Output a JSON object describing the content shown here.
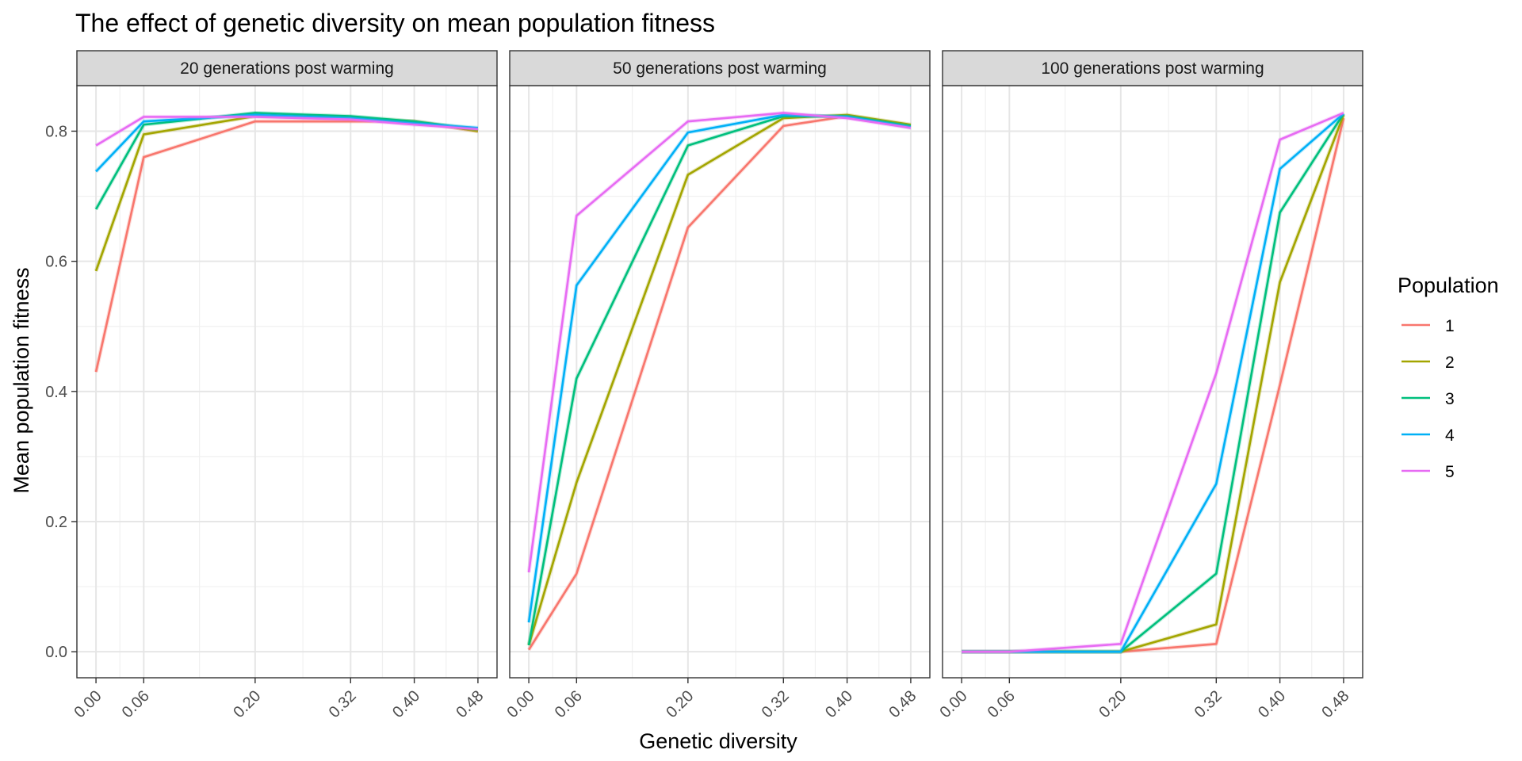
{
  "chart_data": {
    "type": "line",
    "title": "The effect of genetic diversity on mean population fitness",
    "xlabel": "Genetic diversity",
    "ylabel": "Mean population fitness",
    "x": [
      0.0,
      0.06,
      0.2,
      0.32,
      0.4,
      0.48
    ],
    "x_tick_labels": [
      "0.00",
      "0.06",
      "0.20",
      "0.32",
      "0.40",
      "0.48"
    ],
    "y_ticks": [
      0.0,
      0.2,
      0.4,
      0.6,
      0.8
    ],
    "y_tick_labels": [
      "0.0",
      "0.2",
      "0.4",
      "0.6",
      "0.8"
    ],
    "xlim": [
      -0.024,
      0.504
    ],
    "ylim": [
      -0.04,
      0.87
    ],
    "grid": true,
    "legend": {
      "title": "Population",
      "position": "right",
      "entries": [
        {
          "label": "1",
          "color": "#F8766D"
        },
        {
          "label": "2",
          "color": "#A3A500"
        },
        {
          "label": "3",
          "color": "#00BF7D"
        },
        {
          "label": "4",
          "color": "#00B0F6"
        },
        {
          "label": "5",
          "color": "#E76BF3"
        }
      ]
    },
    "panels": [
      {
        "label": "20 generations post warming",
        "series": [
          {
            "name": "1",
            "color": "#F8766D",
            "values": [
              0.43,
              0.76,
              0.815,
              0.815,
              0.815,
              0.8
            ]
          },
          {
            "name": "2",
            "color": "#A3A500",
            "values": [
              0.585,
              0.795,
              0.823,
              0.82,
              0.815,
              0.8
            ]
          },
          {
            "name": "3",
            "color": "#00BF7D",
            "values": [
              0.68,
              0.81,
              0.828,
              0.823,
              0.815,
              0.803
            ]
          },
          {
            "name": "4",
            "color": "#00B0F6",
            "values": [
              0.738,
              0.815,
              0.825,
              0.82,
              0.812,
              0.805
            ]
          },
          {
            "name": "5",
            "color": "#E76BF3",
            "values": [
              0.778,
              0.822,
              0.822,
              0.818,
              0.81,
              0.803
            ]
          }
        ]
      },
      {
        "label": "50 generations post warming",
        "series": [
          {
            "name": "1",
            "color": "#F8766D",
            "values": [
              0.003,
              0.12,
              0.652,
              0.808,
              0.823,
              0.808
            ]
          },
          {
            "name": "2",
            "color": "#A3A500",
            "values": [
              0.01,
              0.26,
              0.733,
              0.82,
              0.825,
              0.81
            ]
          },
          {
            "name": "3",
            "color": "#00BF7D",
            "values": [
              0.01,
              0.42,
              0.778,
              0.823,
              0.823,
              0.808
            ]
          },
          {
            "name": "4",
            "color": "#00B0F6",
            "values": [
              0.045,
              0.563,
              0.798,
              0.825,
              0.822,
              0.806
            ]
          },
          {
            "name": "5",
            "color": "#E76BF3",
            "values": [
              0.122,
              0.67,
              0.815,
              0.828,
              0.82,
              0.805
            ]
          }
        ]
      },
      {
        "label": "100 generations post warming",
        "series": [
          {
            "name": "1",
            "color": "#F8766D",
            "values": [
              0.0,
              0.0,
              0.0,
              0.012,
              0.41,
              0.82
            ]
          },
          {
            "name": "2",
            "color": "#A3A500",
            "values": [
              0.0,
              0.0,
              0.0,
              0.042,
              0.568,
              0.825
            ]
          },
          {
            "name": "3",
            "color": "#00BF7D",
            "values": [
              0.0,
              0.0,
              0.0,
              0.12,
              0.675,
              0.827
            ]
          },
          {
            "name": "4",
            "color": "#00B0F6",
            "values": [
              0.0,
              0.0,
              0.0,
              0.258,
              0.742,
              0.827
            ]
          },
          {
            "name": "5",
            "color": "#E76BF3",
            "values": [
              0.0,
              0.0,
              0.012,
              0.428,
              0.787,
              0.828
            ]
          }
        ]
      }
    ]
  }
}
